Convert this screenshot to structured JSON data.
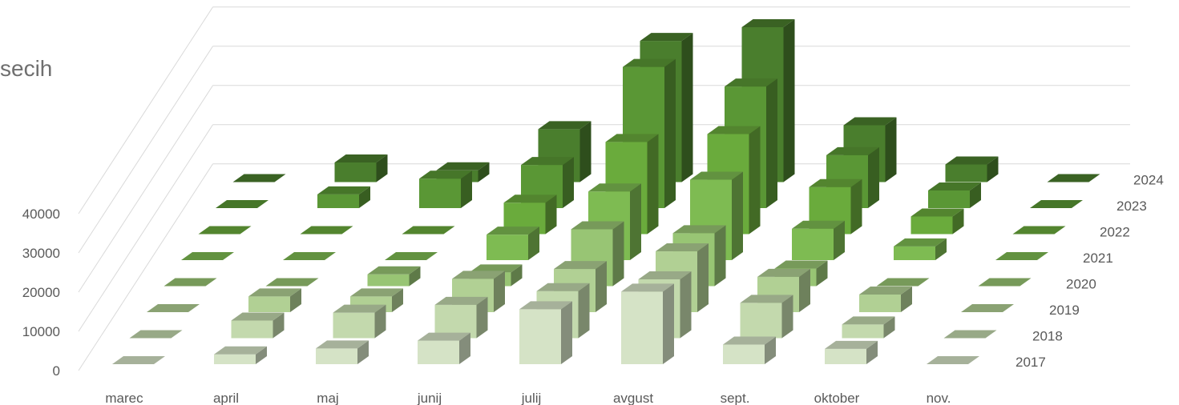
{
  "chart_data": {
    "type": "bar",
    "title": "secih",
    "categories": [
      "marec",
      "april",
      "maj",
      "junij",
      "julij",
      "avgust",
      "sept.",
      "oktober",
      "nov."
    ],
    "series": [
      {
        "name": "2017",
        "color": "#d5e3c6",
        "values": [
          0,
          2500,
          4000,
          6000,
          14000,
          18500,
          5000,
          3900,
          0
        ]
      },
      {
        "name": "2018",
        "color": "#c3d9ad",
        "values": [
          0,
          4500,
          6500,
          8500,
          12000,
          15000,
          9000,
          3500,
          0
        ]
      },
      {
        "name": "2019",
        "color": "#b1d094",
        "values": [
          0,
          4000,
          4000,
          8500,
          11000,
          15500,
          9000,
          4500,
          0
        ]
      },
      {
        "name": "2020",
        "color": "#98c574",
        "values": [
          0,
          0,
          3000,
          3500,
          14500,
          13500,
          4500,
          0,
          0
        ]
      },
      {
        "name": "2021",
        "color": "#7ebb52",
        "values": [
          0,
          0,
          0,
          6500,
          17500,
          20500,
          8000,
          3500,
          0
        ]
      },
      {
        "name": "2022",
        "color": "#6aab3c",
        "values": [
          0,
          0,
          0,
          8000,
          23500,
          25500,
          12000,
          4500,
          0
        ]
      },
      {
        "name": "2023",
        "color": "#5a9735",
        "values": [
          0,
          3500,
          7500,
          11000,
          36000,
          31000,
          13500,
          4500,
          0
        ]
      },
      {
        "name": "2024",
        "color": "#4a7e2d",
        "values": [
          0,
          5000,
          3000,
          13500,
          36000,
          39500,
          14500,
          4500,
          0
        ]
      }
    ],
    "yticks": [
      "0",
      "10000",
      "20000",
      "30000",
      "40000"
    ],
    "ylim": [
      0,
      40000
    ],
    "grid": true,
    "legend": "depth-axis-right"
  }
}
